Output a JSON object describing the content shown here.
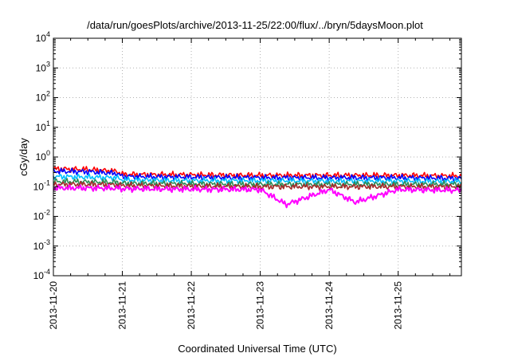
{
  "chart_data": {
    "type": "line",
    "title": "/data/run/goesPlots/archive/2013-11-25/22:00/flux/../bryn/5daysMoon.plot",
    "xlabel": "Coordinated Universal Time (UTC)",
    "ylabel": "cGy/day",
    "y_scale": "log",
    "ylim": [
      0.0001,
      10000
    ],
    "y_ticks": [
      {
        "base": "10",
        "exp": "4"
      },
      {
        "base": "10",
        "exp": "3"
      },
      {
        "base": "10",
        "exp": "2"
      },
      {
        "base": "10",
        "exp": "1"
      },
      {
        "base": "10",
        "exp": "0"
      },
      {
        "base": "10",
        "exp": "-1"
      },
      {
        "base": "10",
        "exp": "-2"
      },
      {
        "base": "10",
        "exp": "-3"
      },
      {
        "base": "10",
        "exp": "-4"
      }
    ],
    "xlim": [
      "2013-11-20 00:00",
      "2013-11-25 22:00"
    ],
    "x_ticks": [
      "2013-11-20",
      "2013-11-21",
      "2013-11-22",
      "2013-11-23",
      "2013-11-24",
      "2013-11-25"
    ],
    "grid": true,
    "legend": "none",
    "series": [
      {
        "color": "#ff0000",
        "x": [
          "2013-11-20 00:00",
          "2013-11-20 12:00",
          "2013-11-20 22:00",
          "2013-11-21 00:00",
          "2013-11-22 00:00",
          "2013-11-23 00:00",
          "2013-11-24 00:00",
          "2013-11-25 00:00",
          "2013-11-25 22:00"
        ],
        "y": [
          0.4,
          0.38,
          0.33,
          0.26,
          0.25,
          0.24,
          0.24,
          0.24,
          0.23
        ]
      },
      {
        "color": "#0000ff",
        "x": [
          "2013-11-20 00:00",
          "2013-11-20 12:00",
          "2013-11-20 22:00",
          "2013-11-21 00:00",
          "2013-11-22 00:00",
          "2013-11-23 00:00",
          "2013-11-24 00:00",
          "2013-11-25 00:00",
          "2013-11-25 22:00"
        ],
        "y": [
          0.33,
          0.32,
          0.28,
          0.22,
          0.21,
          0.2,
          0.2,
          0.2,
          0.19
        ]
      },
      {
        "color": "#00bfff",
        "x": [
          "2013-11-20 00:00",
          "2013-11-20 12:00",
          "2013-11-20 22:00",
          "2013-11-21 00:00",
          "2013-11-22 00:00",
          "2013-11-23 00:00",
          "2013-11-24 00:00",
          "2013-11-25 00:00",
          "2013-11-25 22:00"
        ],
        "y": [
          0.22,
          0.21,
          0.2,
          0.17,
          0.16,
          0.16,
          0.155,
          0.155,
          0.15
        ]
      },
      {
        "color": "#2e8b57",
        "x": [
          "2013-11-20 00:00",
          "2013-11-20 12:00",
          "2013-11-20 22:00",
          "2013-11-21 00:00",
          "2013-11-22 00:00",
          "2013-11-23 00:00",
          "2013-11-24 00:00",
          "2013-11-25 00:00",
          "2013-11-25 22:00"
        ],
        "y": [
          0.15,
          0.145,
          0.14,
          0.13,
          0.125,
          0.12,
          0.12,
          0.12,
          0.12
        ]
      },
      {
        "color": "#a52a2a",
        "x": [
          "2013-11-20 00:00",
          "2013-11-20 12:00",
          "2013-11-20 22:00",
          "2013-11-21 00:00",
          "2013-11-22 00:00",
          "2013-11-23 00:00",
          "2013-11-24 00:00",
          "2013-11-25 00:00",
          "2013-11-25 22:00"
        ],
        "y": [
          0.12,
          0.12,
          0.115,
          0.11,
          0.105,
          0.1,
          0.1,
          0.1,
          0.1
        ]
      },
      {
        "color": "#ff00ff",
        "x": [
          "2013-11-20 00:00",
          "2013-11-20 12:00",
          "2013-11-20 22:00",
          "2013-11-21 00:00",
          "2013-11-22 00:00",
          "2013-11-23 00:00",
          "2013-11-23 09:00",
          "2013-11-24 00:00",
          "2013-11-24 09:00",
          "2013-11-25 00:00",
          "2013-11-25 22:00"
        ],
        "y": [
          0.09,
          0.09,
          0.088,
          0.085,
          0.082,
          0.08,
          0.025,
          0.08,
          0.03,
          0.08,
          0.075
        ]
      }
    ]
  }
}
